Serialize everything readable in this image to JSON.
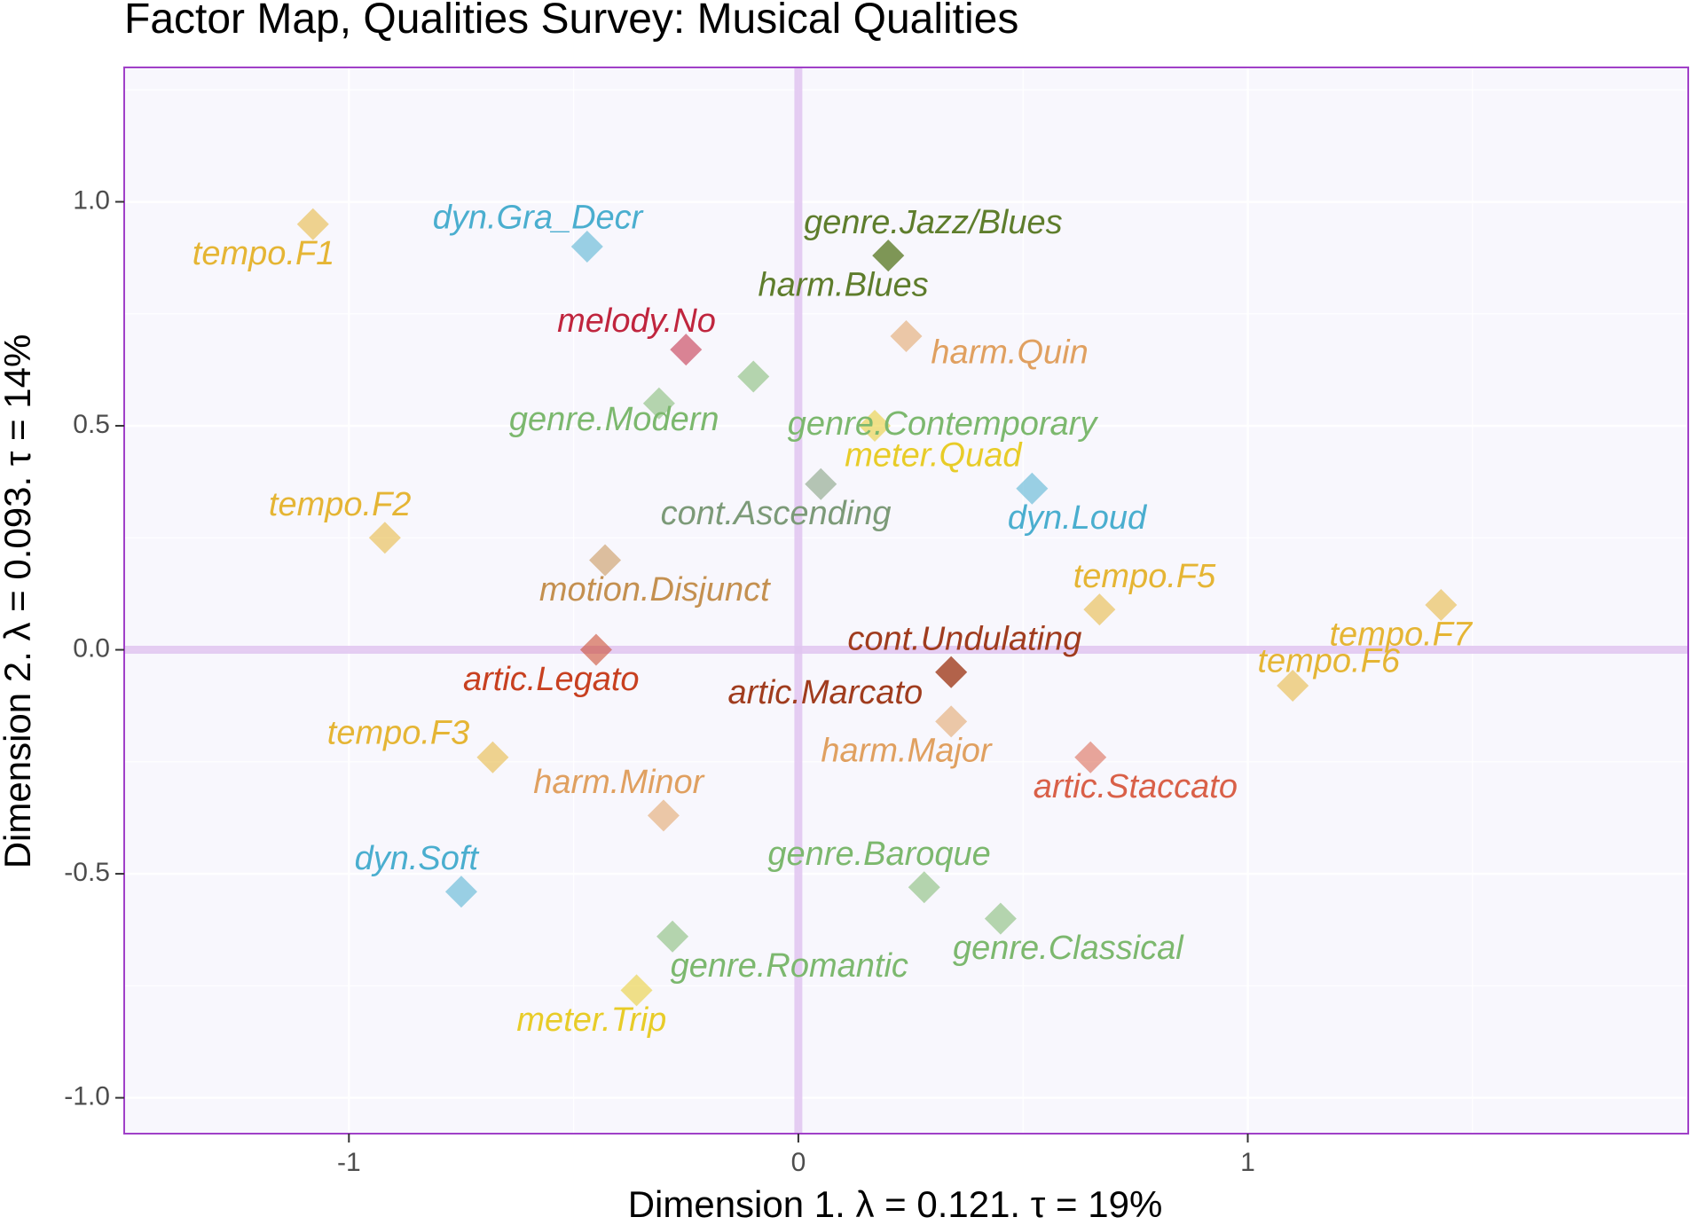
{
  "chart_data": {
    "type": "scatter",
    "title": "Factor Map, Qualities Survey: Musical Qualities",
    "xlabel": "Dimension 1.   λ = 0.121.  τ = 19%",
    "ylabel": "Dimension 2.   λ = 0.093.  τ = 14%",
    "xlim": [
      -1.5,
      1.98
    ],
    "ylim": [
      -1.08,
      1.3
    ],
    "x_ticks": [
      -1,
      0,
      1
    ],
    "x_tick_labels": [
      "-1",
      "0",
      "1"
    ],
    "y_ticks": [
      -1.0,
      -0.5,
      0.0,
      0.5,
      1.0
    ],
    "y_tick_labels": [
      "-1.0",
      "-0.5",
      "0.0",
      "0.5",
      "1.0"
    ],
    "grid": true,
    "background": "#f8f7fd",
    "frame_color": "#a040c8",
    "reference_line_color": "#e0c4f0",
    "points": [
      {
        "label": "tempo.F1",
        "x": -1.08,
        "y": 0.95,
        "color": "#e5b534",
        "label_dx": -0.11,
        "label_dy": -0.07
      },
      {
        "label": "dyn.Gra_Decr",
        "x": -0.47,
        "y": 0.9,
        "color": "#4aaecf",
        "label_dx": -0.11,
        "label_dy": 0.06
      },
      {
        "label": "genre.Jazz/Blues",
        "x": 0.2,
        "y": 0.88,
        "color": "#5e7d2c",
        "label_dx": 0.1,
        "label_dy": 0.07
      },
      {
        "label": "harm.Blues",
        "x": 0.2,
        "y": 0.88,
        "color": "#5e7d2c",
        "label_dx": -0.1,
        "label_dy": -0.07
      },
      {
        "label": "melody.No",
        "x": -0.25,
        "y": 0.67,
        "color": "#c0253e",
        "label_dx": -0.11,
        "label_dy": 0.06
      },
      {
        "label": "harm.Quin",
        "x": 0.24,
        "y": 0.7,
        "color": "#e0a060",
        "label_dx": 0.23,
        "label_dy": -0.04
      },
      {
        "label": "genre.Contemporary",
        "x": -0.1,
        "y": 0.61,
        "color": "#7cb86e",
        "label_dx": 0.42,
        "label_dy": -0.11
      },
      {
        "label": "genre.Modern",
        "x": -0.31,
        "y": 0.55,
        "color": "#7cb86e",
        "label_dx": -0.1,
        "label_dy": -0.04
      },
      {
        "label": "meter.Quad",
        "x": 0.17,
        "y": 0.5,
        "color": "#e8cc28",
        "label_dx": 0.13,
        "label_dy": -0.07
      },
      {
        "label": "cont.Ascending",
        "x": 0.05,
        "y": 0.37,
        "color": "#7c9a78",
        "label_dx": -0.1,
        "label_dy": -0.07
      },
      {
        "label": "dyn.Loud",
        "x": 0.52,
        "y": 0.36,
        "color": "#4aaecf",
        "label_dx": 0.1,
        "label_dy": -0.07
      },
      {
        "label": "tempo.F2",
        "x": -0.92,
        "y": 0.25,
        "color": "#e5b534",
        "label_dx": -0.1,
        "label_dy": 0.07
      },
      {
        "label": "motion.Disjunct",
        "x": -0.43,
        "y": 0.2,
        "color": "#c49050",
        "label_dx": 0.11,
        "label_dy": -0.07
      },
      {
        "label": "tempo.F5",
        "x": 0.67,
        "y": 0.09,
        "color": "#e5b534",
        "label_dx": 0.1,
        "label_dy": 0.07
      },
      {
        "label": "tempo.F7",
        "x": 1.43,
        "y": 0.1,
        "color": "#e5b534",
        "label_dx": -0.09,
        "label_dy": -0.07
      },
      {
        "label": "cont.Undulating",
        "x": 0.34,
        "y": -0.05,
        "color": "#a03c1e",
        "label_dx": 0.03,
        "label_dy": 0.07
      },
      {
        "label": "tempo.F6",
        "x": 1.1,
        "y": -0.08,
        "color": "#e5b534",
        "label_dx": 0.08,
        "label_dy": 0.05
      },
      {
        "label": "artic.Legato",
        "x": -0.45,
        "y": 0.0,
        "color": "#c84020",
        "label_dx": -0.1,
        "label_dy": -0.07
      },
      {
        "label": "artic.Marcato",
        "x": 0.34,
        "y": -0.05,
        "color": "#a03c1e",
        "label_dx": -0.28,
        "label_dy": -0.05
      },
      {
        "label": "harm.Major",
        "x": 0.34,
        "y": -0.16,
        "color": "#e0a060",
        "label_dx": -0.1,
        "label_dy": -0.07
      },
      {
        "label": "artic.Staccato",
        "x": 0.65,
        "y": -0.24,
        "color": "#d96048",
        "label_dx": 0.1,
        "label_dy": -0.07
      },
      {
        "label": "tempo.F3",
        "x": -0.68,
        "y": -0.24,
        "color": "#e5b534",
        "label_dx": -0.21,
        "label_dy": 0.05
      },
      {
        "label": "harm.Minor",
        "x": -0.3,
        "y": -0.37,
        "color": "#e0a060",
        "label_dx": -0.1,
        "label_dy": 0.07
      },
      {
        "label": "dyn.Soft",
        "x": -0.75,
        "y": -0.54,
        "color": "#4aaecf",
        "label_dx": -0.1,
        "label_dy": 0.07
      },
      {
        "label": "genre.Baroque",
        "x": 0.28,
        "y": -0.53,
        "color": "#7cb86e",
        "label_dx": -0.1,
        "label_dy": 0.07
      },
      {
        "label": "genre.Classical",
        "x": 0.45,
        "y": -0.6,
        "color": "#7cb86e",
        "label_dx": 0.15,
        "label_dy": -0.07
      },
      {
        "label": "genre.Romantic",
        "x": -0.28,
        "y": -0.64,
        "color": "#7cb86e",
        "label_dx": 0.26,
        "label_dy": -0.07
      },
      {
        "label": "meter.Trip",
        "x": -0.36,
        "y": -0.76,
        "color": "#e8cc28",
        "label_dx": -0.1,
        "label_dy": -0.07
      }
    ]
  }
}
